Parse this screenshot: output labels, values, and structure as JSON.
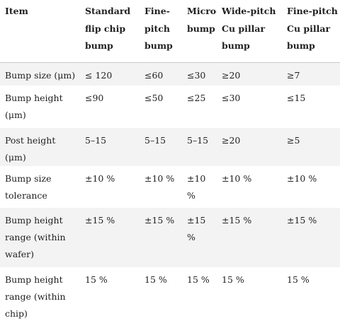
{
  "table": {
    "headers": [
      "Item",
      "Standard flip chip bump",
      "Fine-pitch bump",
      "Micro-bump",
      "Wide-pitch Cu pillar bump",
      "Fine-pitch Cu pillar bump"
    ],
    "rows": [
      [
        "Bump size (μm)",
        "≤ 120",
        "≤60",
        "≤30",
        "≥20",
        "≥7"
      ],
      [
        "Bump height (μm)",
        "≤90",
        "≤50",
        "≤25",
        "≤30",
        "≤15"
      ],
      [
        "Post height (μm)",
        "5–15",
        "5–15",
        "5–15",
        "≥20",
        "≥5"
      ],
      [
        "Bump size tolerance",
        "±10 %",
        "±10 %",
        "±10 %",
        "±10 %",
        "±10 %"
      ],
      [
        "Bump height range (within wafer)",
        "±15 %",
        "±15 %",
        "±15 %",
        "±15 %",
        "±15 %"
      ],
      [
        "Bump height range (within chip)",
        "15 %",
        "15 %",
        "15 %",
        "15 %",
        "15 %"
      ]
    ]
  }
}
